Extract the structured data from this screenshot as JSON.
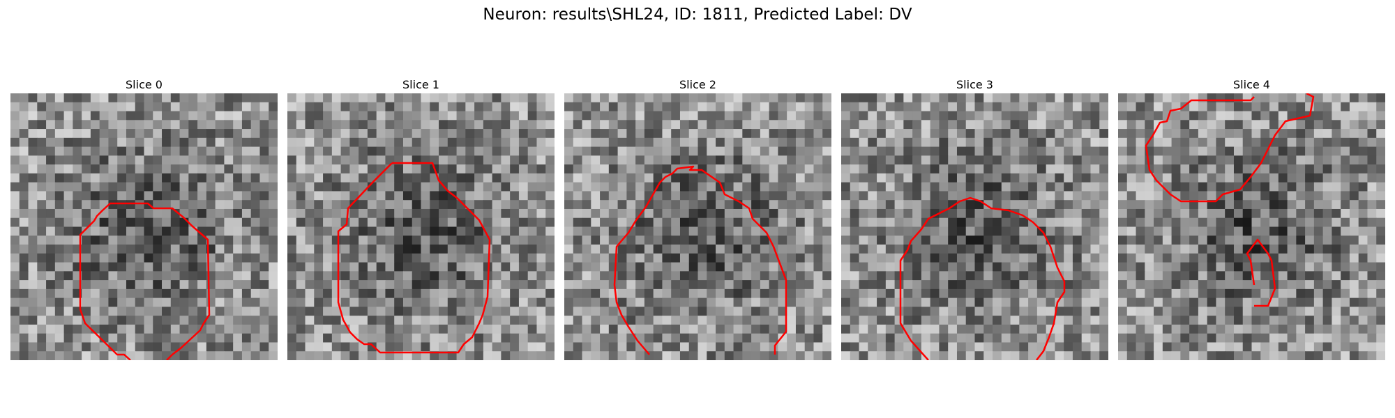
{
  "figure": {
    "title": "Neuron: results\\SHL24, ID: 1811, Predicted Label: DV",
    "overlay_color": "#ff0000"
  },
  "panels": [
    {
      "title": "Slice 0"
    },
    {
      "title": "Slice 1"
    },
    {
      "title": "Slice 2"
    },
    {
      "title": "Slice 3"
    },
    {
      "title": "Slice 4"
    }
  ]
}
